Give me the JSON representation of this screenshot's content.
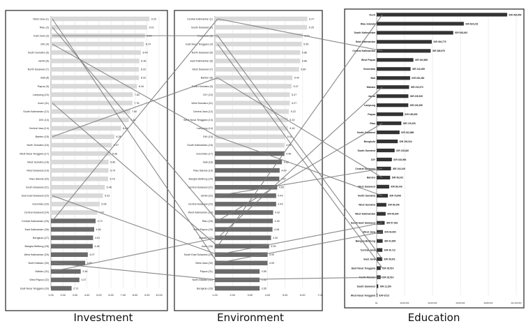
{
  "panels": [
    {
      "id": "investment",
      "caption": "Investment",
      "chart_data": {
        "type": "bar",
        "orientation": "horizontal",
        "xlim": [
          1,
          10
        ],
        "ticks": [
          "1.00",
          "2.00",
          "3.00",
          "4.00",
          "5.00",
          "6.00",
          "7.00",
          "8.00",
          "9.00",
          "10.00"
        ],
        "categories": [
          "West Java (1)",
          "Riau (2)",
          "East Java (3)",
          "DKI (4)",
          "South Sumatra (5)",
          "Jambi (6)",
          "North Sulawesi (7)",
          "Bali (8)",
          "Papua (9)",
          "Lampung (10)",
          "Aceh (11)",
          "South Kalimantan (12)",
          "DIG (13)",
          "Central Java (14)",
          "Banten (15)",
          "North Sumatra (16)",
          "West Nusa Tenggara (17)",
          "West Sumatra (18)",
          "West Sulawesi (19)",
          "Riau Islands (20)",
          "South Sulawesi (21)",
          "Sout East Sulawesi (22)",
          "Gorontalo (23)",
          "Central Sulawesi (24)",
          "Central Kalimantan (25)",
          "East Kalimantan (26)",
          "Bengkulu (27)",
          "Bangka Belitung (28)",
          "West Kalimantan (29)",
          "North Maluku (30)",
          "Maluku (31)",
          "West Papua (32)",
          "East Nusa Tenggara (33)"
        ],
        "values": [
          9.2,
          9.01,
          8.83,
          8.74,
          8.49,
          8.36,
          8.33,
          8.33,
          8.16,
          7.82,
          7.78,
          7.6,
          7.48,
          6.84,
          6.28,
          6.07,
          5.96,
          5.8,
          5.79,
          5.76,
          5.48,
          5.33,
          5.06,
          4.87,
          4.72,
          4.6,
          4.51,
          4.48,
          4.07,
          3.85,
          3.48,
          3.37,
          2.72
        ],
        "value_labels": [
          "9.20",
          "9.01",
          "8.83",
          "8.74",
          "8.49",
          "8.36",
          "8.33",
          "8.33",
          "8.16",
          "7.82",
          "7.78",
          "7.60",
          "7.48",
          "6.84",
          "6.28",
          "6.07",
          "5.96",
          "5.80",
          "5.79",
          "5.76",
          "5.48",
          "5.33",
          "5.06",
          "4.87",
          "4.72",
          "4.60",
          "4.51",
          "4.48",
          "4.07",
          "3.85",
          "3.48",
          "3.37",
          "2.72"
        ]
      }
    },
    {
      "id": "environment",
      "caption": "Environment",
      "chart_data": {
        "type": "bar",
        "orientation": "horizontal",
        "xlim": [
          1,
          7
        ],
        "ticks": [
          "1.00",
          "2.00",
          "3.00",
          "4.00",
          "5.00",
          "6.00",
          "7.00"
        ],
        "categories": [
          "Central Kalimantan (1)",
          "South Sulawesi (2)",
          "East Java (3)",
          "East Nusa Tenggara (4)",
          "North Sulawesi (5)",
          "East Kalimantan (6)",
          "West Sulawesi (7)",
          "Banten (8)",
          "South Sumatra (9)",
          "DIY (10)",
          "West Sumatra (11)",
          "Central Java (12)",
          "West Nusa Tenggara (13)",
          "Lampung (14)",
          "DKI (15)",
          "South Kalimantan (16)",
          "Gorontalo (17)",
          "Bali (18)",
          "Riau Islands (19)",
          "Bangka Belitung (20)",
          "Central Sulawesi (21)",
          "Jambi (22)",
          "Central Sulawesi (23)",
          "West Kalimantan (24)",
          "Riau (25)",
          "West Papua (26)",
          "Maluku (27)",
          "Aceh (28)",
          "South East Sulawesi (29)",
          "West Java (30)",
          "Papua (31)",
          "North Maluku (32)",
          "Bengkulu (33)"
        ],
        "values": [
          6.27,
          6.25,
          6.0,
          5.95,
          5.86,
          5.86,
          5.8,
          5.42,
          5.37,
          5.27,
          5.27,
          5.22,
          5.16,
          5.16,
          5.02,
          4.96,
          4.96,
          4.82,
          4.69,
          4.67,
          4.55,
          4.49,
          4.49,
          4.32,
          4.3,
          4.28,
          4.2,
          4.09,
          4.0,
          4.0,
          3.55,
          3.55,
          3.55
        ],
        "value_labels": [
          "6.27",
          "6.25",
          "6.00",
          "5.95",
          "5.86",
          "5.86",
          "5.80",
          "5.42",
          "5.37",
          "5.27",
          "5.27",
          "5.22",
          "5.16",
          "5.16",
          "5.02",
          "4.96",
          "4.96",
          "4.82",
          "4.69",
          "4.67",
          "4.55",
          "4.49",
          "4.49",
          "4.32",
          "4.30",
          "4.28",
          "4.20",
          "4.09",
          "4.00",
          "4.00",
          "3.55",
          "3.55",
          "3.55"
        ]
      }
    },
    {
      "id": "education",
      "caption": "Education",
      "chart_data": {
        "type": "bar",
        "orientation": "horizontal",
        "xlim": [
          0,
          1000000
        ],
        "ticks": [
          "Rp-",
          "Rp200,000",
          "Rp400,000",
          "Rp600,000",
          "Rp800,000",
          "Rp1,000,000"
        ],
        "categories": [
          "Aceh",
          "Riau Islands",
          "South Kalimantan",
          "East Kalimantan",
          "Central Kalimantan",
          "West Papua",
          "Gorontalo",
          "Bali",
          "Maluku",
          "Jambi",
          "Lampung",
          "Papua",
          "Riau",
          "North Sulawesi",
          "Bengkulu",
          "South Sumatra",
          "DIY",
          "Central Sulawesi",
          "Banten",
          "West Sulawesi",
          "North Sumatra",
          "West Sumatra",
          "West Kalimantan",
          "South East Sulawesi",
          "West Java",
          "Bangka Belitung",
          "Central Java",
          "East Java",
          "East Nusa Tenggara",
          "North Maluku",
          "South Sulawesi",
          "West Nusa Tenggara"
        ],
        "values": [
          934850,
          624223,
          548403,
          394779,
          386979,
          262868,
          242465,
          239382,
          232072,
          226935,
          226356,
          189635,
          176293,
          163868,
          150524,
          128482,
          108906,
          102249,
          96242,
          89343,
          79898,
          69306,
          63834,
          57093,
          44600,
          42605,
          40712,
          39901,
          28514,
          28514,
          11269,
          4513
        ],
        "value_labels": [
          "IDR 934,850",
          "IDR 624,223",
          "IDR 548,403",
          "IDR 394,779",
          "IDR 386,979",
          "IDR 262,868",
          "IDR 242,465",
          "IDR 239,382",
          "IDR 232,072",
          "IDR 226,935",
          "IDR 226,356",
          "IDR 189,635",
          "IDR 176,293",
          "IDR 163,868",
          "IDR 150,524",
          "IDR 128,482",
          "IDR 108,906",
          "IDR 102,249",
          "IDR 96,242",
          "IDR 89,343",
          "IDR 79,898",
          "IDR 69,306",
          "IDR 63,834",
          "IDR 57,093",
          "IDR 44,600",
          "IDR 42,605",
          "IDR 40,712",
          "IDR 39,901",
          "IDR 28,514",
          "IDR 28,514",
          "IDR 11,269",
          "IDR 4,513"
        ],
        "bar_color": "#333333"
      }
    }
  ],
  "colors": {
    "bar_light": "#d9d9d9",
    "bar_dark": "#6b6b6b",
    "connector": "#7a7a7a",
    "panel_border": "#333333"
  },
  "connectors": [
    [
      0,
      0,
      1,
      29
    ],
    [
      0,
      1,
      1,
      24
    ],
    [
      0,
      2,
      1,
      2
    ],
    [
      0,
      3,
      1,
      14
    ],
    [
      0,
      10,
      1,
      27
    ],
    [
      0,
      14,
      1,
      7
    ],
    [
      0,
      21,
      1,
      28
    ],
    [
      0,
      24,
      1,
      0
    ],
    [
      0,
      29,
      1,
      31
    ],
    [
      0,
      30,
      1,
      26
    ],
    [
      1,
      2,
      2,
      27
    ],
    [
      1,
      3,
      2,
      28
    ],
    [
      1,
      7,
      2,
      18
    ],
    [
      1,
      0,
      2,
      4
    ],
    [
      1,
      14,
      2,
      20
    ],
    [
      1,
      21,
      2,
      17
    ],
    [
      1,
      27,
      2,
      0
    ],
    [
      1,
      28,
      2,
      23
    ],
    [
      1,
      29,
      2,
      24
    ],
    [
      1,
      31,
      2,
      29
    ],
    [
      1,
      26,
      2,
      8
    ],
    [
      1,
      24,
      2,
      12
    ]
  ]
}
